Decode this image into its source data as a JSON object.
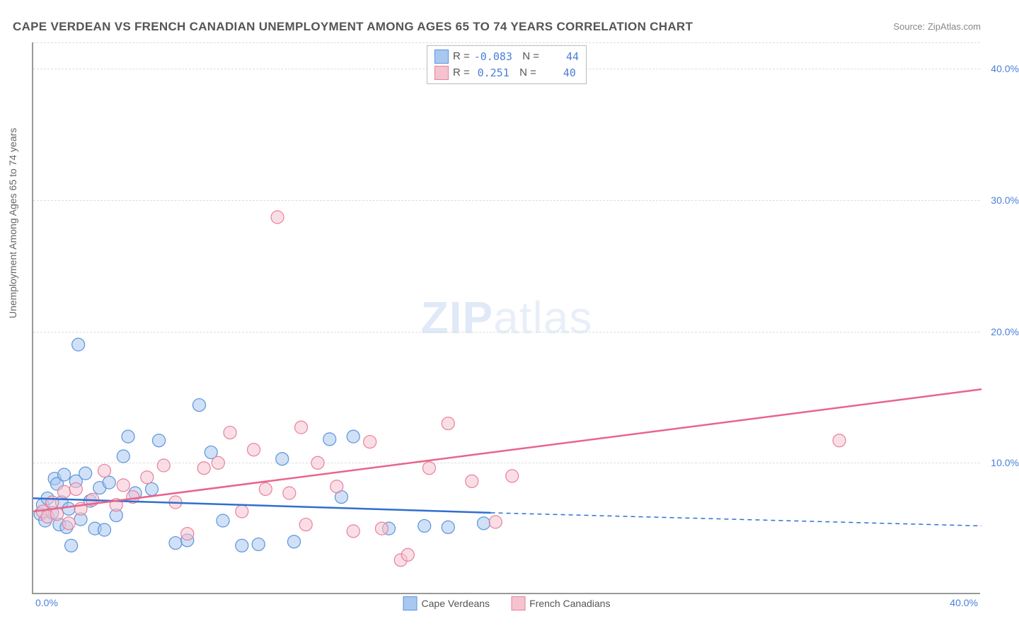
{
  "title": "CAPE VERDEAN VS FRENCH CANADIAN UNEMPLOYMENT AMONG AGES 65 TO 74 YEARS CORRELATION CHART",
  "source": "Source: ZipAtlas.com",
  "ylabel": "Unemployment Among Ages 65 to 74 years",
  "watermark_bold": "ZIP",
  "watermark_light": "atlas",
  "chart": {
    "type": "scatter",
    "xlim": [
      0,
      40
    ],
    "ylim": [
      0,
      42
    ],
    "grid_y": [
      10,
      20,
      30,
      40
    ],
    "yticks": [
      "10.0%",
      "20.0%",
      "30.0%",
      "40.0%"
    ],
    "xtick_left": "0.0%",
    "xtick_right": "40.0%",
    "grid_color": "#dddddd",
    "axis_color": "#999999",
    "background_color": "#ffffff",
    "marker_radius": 9,
    "marker_opacity": 0.55,
    "line_width": 2.5,
    "series": [
      {
        "name": "Cape Verdeans",
        "legend_label": "Cape Verdeans",
        "color_fill": "#a9c8f0",
        "color_stroke": "#5b93db",
        "line_color": "#2f6fd0",
        "R": "-0.083",
        "N": "44",
        "trend": {
          "x1": 0,
          "y1": 7.3,
          "x2": 19.3,
          "y2": 6.2,
          "x2_dash": 40,
          "y2_dash": 5.2
        },
        "points": [
          [
            0.3,
            6.1
          ],
          [
            0.4,
            6.8
          ],
          [
            0.5,
            5.6
          ],
          [
            0.6,
            7.3
          ],
          [
            0.8,
            6.2
          ],
          [
            0.9,
            8.8
          ],
          [
            1.0,
            8.4
          ],
          [
            1.1,
            5.3
          ],
          [
            1.2,
            7.0
          ],
          [
            1.3,
            9.1
          ],
          [
            1.4,
            5.1
          ],
          [
            1.5,
            6.5
          ],
          [
            1.6,
            3.7
          ],
          [
            1.8,
            8.6
          ],
          [
            1.9,
            19.0
          ],
          [
            2.0,
            5.7
          ],
          [
            2.2,
            9.2
          ],
          [
            2.4,
            7.1
          ],
          [
            2.6,
            5.0
          ],
          [
            2.8,
            8.1
          ],
          [
            3.0,
            4.9
          ],
          [
            3.2,
            8.5
          ],
          [
            3.5,
            6.0
          ],
          [
            3.8,
            10.5
          ],
          [
            4.0,
            12.0
          ],
          [
            4.3,
            7.7
          ],
          [
            5.0,
            8.0
          ],
          [
            5.3,
            11.7
          ],
          [
            6.0,
            3.9
          ],
          [
            6.5,
            4.1
          ],
          [
            7.0,
            14.4
          ],
          [
            7.5,
            10.8
          ],
          [
            8.0,
            5.6
          ],
          [
            8.8,
            3.7
          ],
          [
            9.5,
            3.8
          ],
          [
            10.5,
            10.3
          ],
          [
            11.0,
            4.0
          ],
          [
            12.5,
            11.8
          ],
          [
            13.0,
            7.4
          ],
          [
            13.5,
            12.0
          ],
          [
            15.0,
            5.0
          ],
          [
            16.5,
            5.2
          ],
          [
            17.5,
            5.1
          ],
          [
            19.0,
            5.4
          ]
        ]
      },
      {
        "name": "French Canadians",
        "legend_label": "French Canadians",
        "color_fill": "#f5c3cf",
        "color_stroke": "#e8809b",
        "line_color": "#e8658b",
        "R": "0.251",
        "N": "40",
        "trend": {
          "x1": 0,
          "y1": 6.3,
          "x2": 40,
          "y2": 15.6
        },
        "points": [
          [
            0.4,
            6.3
          ],
          [
            0.6,
            5.9
          ],
          [
            0.8,
            7.0
          ],
          [
            1.0,
            6.1
          ],
          [
            1.3,
            7.8
          ],
          [
            1.5,
            5.4
          ],
          [
            1.8,
            8.0
          ],
          [
            2.0,
            6.5
          ],
          [
            2.5,
            7.2
          ],
          [
            3.0,
            9.4
          ],
          [
            3.5,
            6.8
          ],
          [
            3.8,
            8.3
          ],
          [
            4.2,
            7.4
          ],
          [
            4.8,
            8.9
          ],
          [
            5.5,
            9.8
          ],
          [
            6.0,
            7.0
          ],
          [
            6.5,
            4.6
          ],
          [
            7.2,
            9.6
          ],
          [
            7.8,
            10.0
          ],
          [
            8.3,
            12.3
          ],
          [
            8.8,
            6.3
          ],
          [
            9.3,
            11.0
          ],
          [
            9.8,
            8.0
          ],
          [
            10.3,
            28.7
          ],
          [
            10.8,
            7.7
          ],
          [
            11.3,
            12.7
          ],
          [
            11.5,
            5.3
          ],
          [
            12.0,
            10.0
          ],
          [
            12.8,
            8.2
          ],
          [
            13.5,
            4.8
          ],
          [
            14.2,
            11.6
          ],
          [
            14.7,
            5.0
          ],
          [
            15.5,
            2.6
          ],
          [
            15.8,
            3.0
          ],
          [
            16.7,
            9.6
          ],
          [
            17.5,
            13.0
          ],
          [
            18.5,
            8.6
          ],
          [
            19.5,
            5.5
          ],
          [
            20.2,
            9.0
          ],
          [
            34.0,
            11.7
          ]
        ]
      }
    ]
  },
  "legend_swatch": {
    "blue_fill": "#a9c8f0",
    "blue_border": "#5b93db",
    "pink_fill": "#f5c3cf",
    "pink_border": "#e8809b"
  }
}
